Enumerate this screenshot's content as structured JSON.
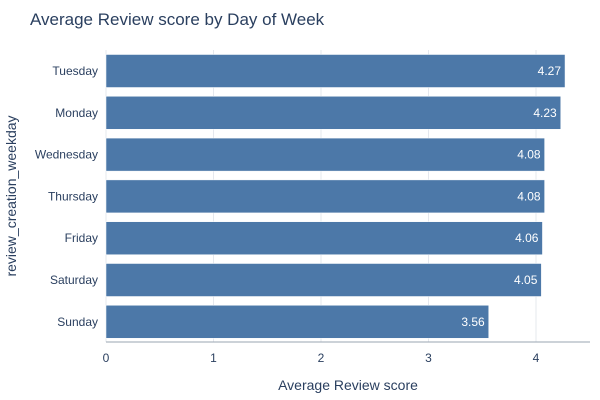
{
  "chart_data": {
    "type": "bar",
    "orientation": "horizontal",
    "title": "Average Review score by Day of Week",
    "xlabel": "Average Review score",
    "ylabel": "review_creation_weekday",
    "categories": [
      "Tuesday",
      "Monday",
      "Wednesday",
      "Thursday",
      "Friday",
      "Saturday",
      "Sunday"
    ],
    "values": [
      4.27,
      4.23,
      4.08,
      4.08,
      4.06,
      4.05,
      3.56
    ],
    "value_labels": [
      "4.27",
      "4.23",
      "4.08",
      "4.08",
      "4.06",
      "4.05",
      "3.56"
    ],
    "xticks": [
      0,
      1,
      2,
      3,
      4
    ],
    "xlim": [
      0,
      4.5
    ],
    "grid": "vertical",
    "bar_color": "#4c78a8"
  }
}
